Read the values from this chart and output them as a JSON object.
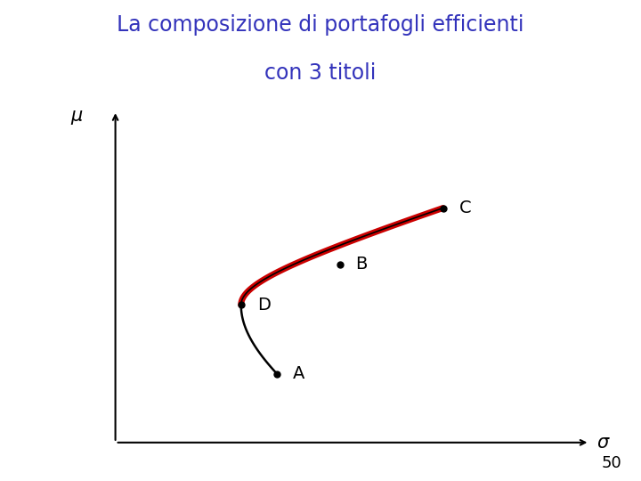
{
  "title_line1": "La composizione di portafogli efficienti",
  "title_line2": "con 3 titoli",
  "title_color": "#3333bb",
  "title_fontsize": 17,
  "background_color": "#ffffff",
  "xlabel": "σ",
  "ylabel": "μ",
  "page_number": "50",
  "efficient_frontier_color": "#cc0000",
  "full_curve_color": "#000000",
  "point_color": "#000000",
  "point_size": 5
}
